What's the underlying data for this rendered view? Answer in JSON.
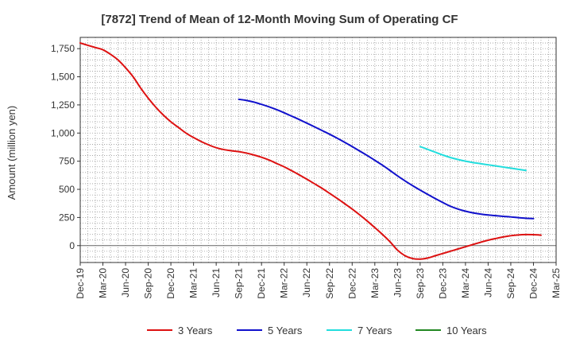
{
  "chart_data": {
    "type": "line",
    "title": "[7872]  Trend of Mean of 12-Month Moving Sum of Operating CF",
    "ylabel": "Amount (million yen)",
    "xlabel": "",
    "ylim": [
      -150,
      1850
    ],
    "y_ticks": [
      0,
      250,
      500,
      750,
      1000,
      1250,
      1500,
      1750
    ],
    "y_tick_labels": [
      "0",
      "250",
      "500",
      "750",
      "1,000",
      "1,250",
      "1,500",
      "1,750"
    ],
    "x_tick_labels": [
      "Dec-19",
      "Mar-20",
      "Jun-20",
      "Sep-20",
      "Dec-20",
      "Mar-21",
      "Jun-21",
      "Sep-21",
      "Dec-21",
      "Mar-22",
      "Jun-22",
      "Sep-22",
      "Dec-22",
      "Mar-23",
      "Jun-23",
      "Sep-23",
      "Dec-23",
      "Mar-24",
      "Jun-24",
      "Sep-24",
      "Dec-24",
      "Mar-25"
    ],
    "x_periods": [
      "Dec-19",
      "Jan-20",
      "Feb-20",
      "Mar-20",
      "Apr-20",
      "May-20",
      "Jun-20",
      "Jul-20",
      "Aug-20",
      "Sep-20",
      "Oct-20",
      "Nov-20",
      "Dec-20",
      "Jan-21",
      "Feb-21",
      "Mar-21",
      "Apr-21",
      "May-21",
      "Jun-21",
      "Jul-21",
      "Aug-21",
      "Sep-21",
      "Oct-21",
      "Nov-21",
      "Dec-21",
      "Jan-22",
      "Feb-22",
      "Mar-22",
      "Apr-22",
      "May-22",
      "Jun-22",
      "Jul-22",
      "Aug-22",
      "Sep-22",
      "Oct-22",
      "Nov-22",
      "Dec-22",
      "Jan-23",
      "Feb-23",
      "Mar-23",
      "Apr-23",
      "May-23",
      "Jun-23",
      "Jul-23",
      "Aug-23",
      "Sep-23",
      "Oct-23",
      "Nov-23",
      "Dec-23",
      "Jan-24",
      "Feb-24",
      "Mar-24",
      "Apr-24",
      "May-24",
      "Jun-24",
      "Jul-24",
      "Aug-24",
      "Sep-24",
      "Oct-24",
      "Nov-24",
      "Dec-24",
      "Jan-25",
      "Feb-25",
      "Mar-25"
    ],
    "grid": true,
    "legend_position": "bottom",
    "series": [
      {
        "name": "3 Years",
        "color": "#dd1111",
        "start_index": 0,
        "values": [
          1800,
          1780,
          1760,
          1740,
          1700,
          1650,
          1580,
          1500,
          1400,
          1310,
          1230,
          1160,
          1100,
          1050,
          1000,
          960,
          925,
          895,
          870,
          853,
          843,
          835,
          822,
          805,
          785,
          760,
          730,
          700,
          665,
          628,
          590,
          550,
          510,
          465,
          420,
          373,
          325,
          273,
          218,
          160,
          100,
          35,
          -40,
          -90,
          -115,
          -120,
          -110,
          -90,
          -70,
          -50,
          -30,
          -10,
          10,
          30,
          48,
          63,
          77,
          88,
          95,
          98,
          97,
          93
        ]
      },
      {
        "name": "5 Years",
        "color": "#1111cc",
        "start_index": 21,
        "values": [
          1300,
          1290,
          1275,
          1255,
          1233,
          1208,
          1180,
          1150,
          1120,
          1088,
          1056,
          1023,
          990,
          955,
          918,
          880,
          840,
          800,
          758,
          715,
          668,
          620,
          575,
          533,
          493,
          455,
          418,
          383,
          350,
          325,
          306,
          291,
          280,
          272,
          266,
          260,
          255,
          248,
          243,
          240
        ]
      },
      {
        "name": "7 Years",
        "color": "#22dddd",
        "start_index": 45,
        "values": [
          880,
          855,
          830,
          805,
          783,
          765,
          750,
          738,
          728,
          718,
          708,
          698,
          688,
          678,
          668
        ]
      },
      {
        "name": "10 Years",
        "color": "#228822",
        "start_index": 0,
        "values": []
      }
    ]
  }
}
